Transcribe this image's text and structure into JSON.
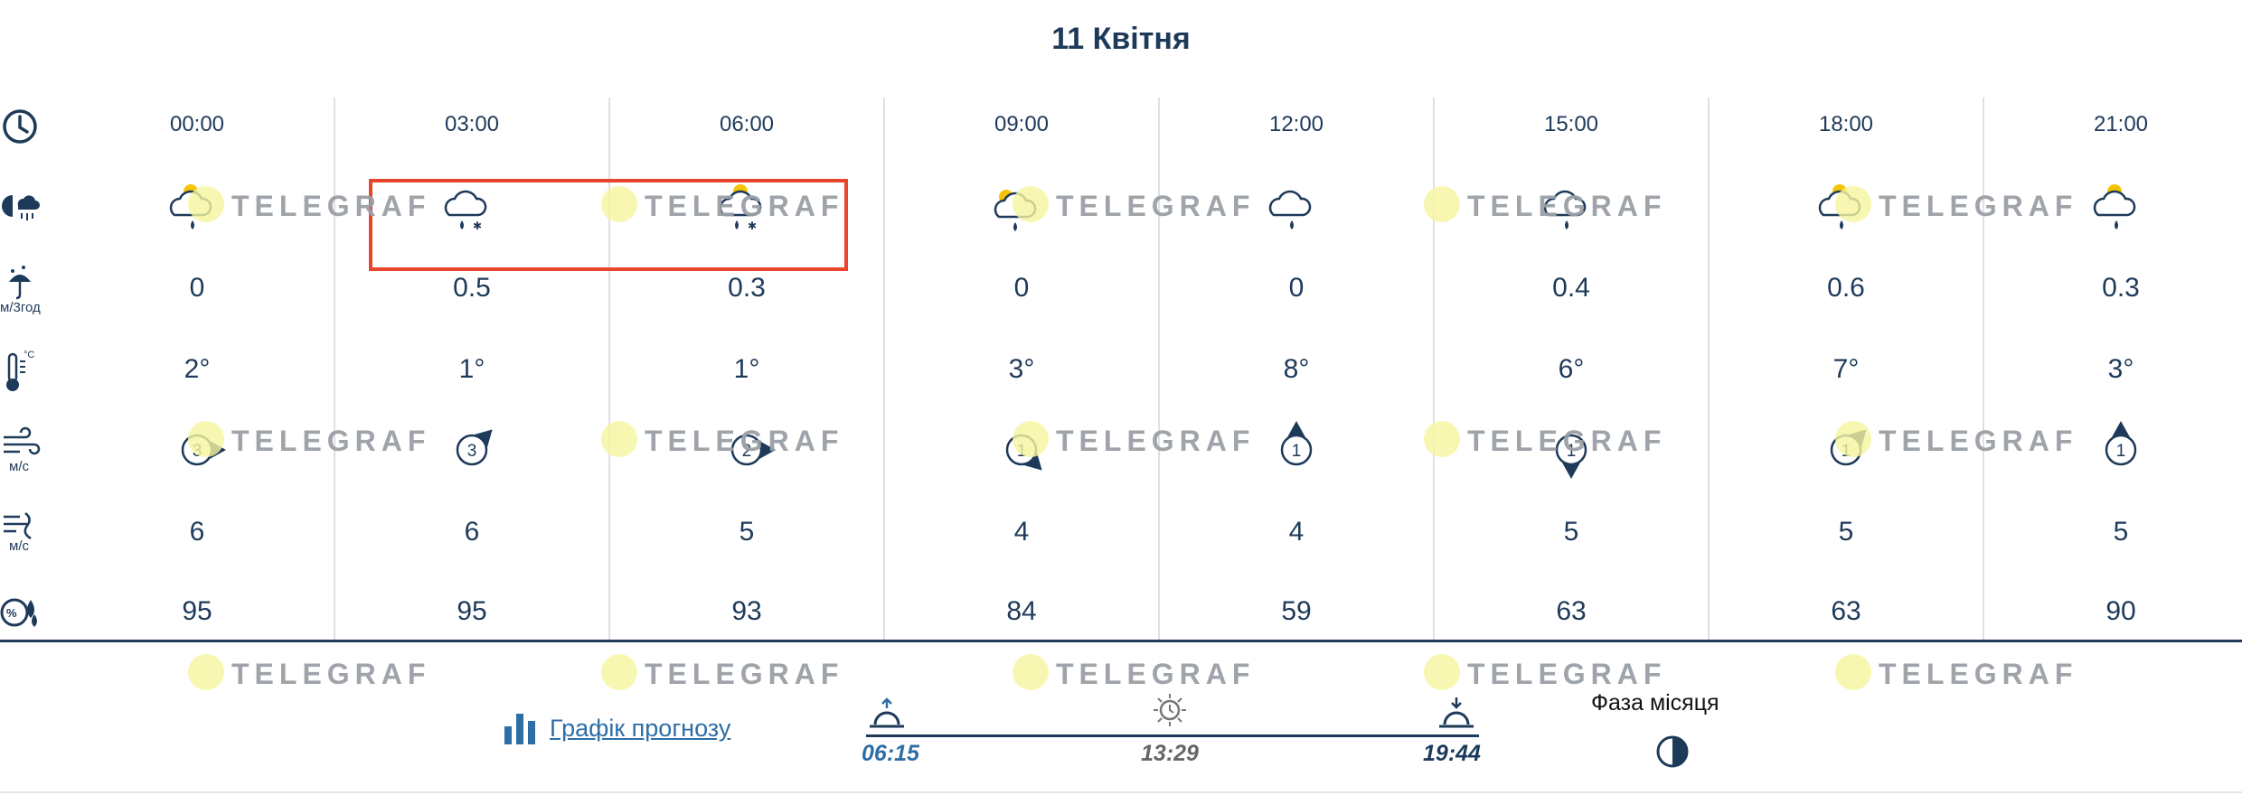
{
  "title": "11 Квітня",
  "rows": {
    "times": [
      "00:00",
      "03:00",
      "06:00",
      "09:00",
      "12:00",
      "15:00",
      "18:00",
      "21:00"
    ],
    "precip": [
      "0",
      "0.5",
      "0.3",
      "0",
      "0",
      "0.4",
      "0.6",
      "0.3"
    ],
    "precip_unit": "м/3год",
    "temps": [
      "2°",
      "1°",
      "1°",
      "3°",
      "8°",
      "6°",
      "7°",
      "3°"
    ],
    "wind_speed": [
      "3",
      "3",
      "2",
      "1",
      "1",
      "1",
      "1",
      "1"
    ],
    "wind_unit": "м/с",
    "gusts": [
      "6",
      "6",
      "5",
      "4",
      "4",
      "5",
      "5",
      "5"
    ],
    "gust_unit": "м/с",
    "humidity": [
      "95",
      "95",
      "93",
      "84",
      "59",
      "63",
      "63",
      "90"
    ]
  },
  "weather_icons": [
    "partly-cloudy-rain-icon",
    "cloud-rain-snow-icon",
    "partly-cloudy-rain-snow-icon",
    "partly-cloudy-rain-icon",
    "cloud-rain-icon",
    "cloud-rain-icon",
    "partly-cloudy-rain-icon",
    "partly-cloudy-rain-icon"
  ],
  "wind_direction_deg": [
    90,
    45,
    90,
    135,
    0,
    180,
    45,
    0
  ],
  "watermark": "TELEGRAF",
  "forecast_link": "Графік прогнозу",
  "sunrise": "06:15",
  "day_length": "13:29",
  "sunset": "19:44",
  "moon_phase_label": "Фаза місяця",
  "colors": {
    "text": "#1e3a5a",
    "highlight": "#e8452c",
    "link": "#2e6ea6",
    "grid": "#e0e0e0"
  }
}
